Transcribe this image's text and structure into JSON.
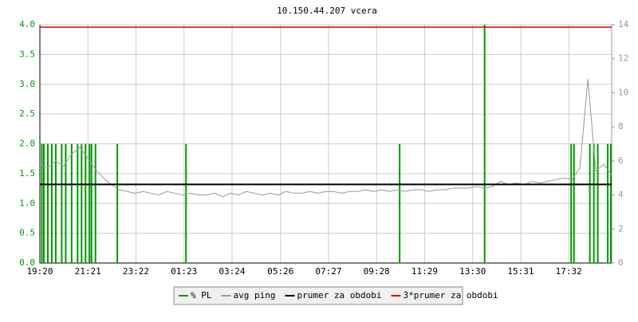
{
  "chart_data": {
    "type": "line",
    "title": "10.150.44.207 vcera",
    "xlim": [
      0,
      1440
    ],
    "xticks": [
      {
        "value": 0,
        "label": "19:20"
      },
      {
        "value": 121,
        "label": "21:21"
      },
      {
        "value": 242,
        "label": "23:22"
      },
      {
        "value": 363,
        "label": "01:23"
      },
      {
        "value": 484,
        "label": "03:24"
      },
      {
        "value": 606,
        "label": "05:26"
      },
      {
        "value": 727,
        "label": "07:27"
      },
      {
        "value": 848,
        "label": "09:28"
      },
      {
        "value": 969,
        "label": "11:29"
      },
      {
        "value": 1090,
        "label": "13:30"
      },
      {
        "value": 1211,
        "label": "15:31"
      },
      {
        "value": 1332,
        "label": "17:32"
      }
    ],
    "ylim": [
      0,
      4
    ],
    "yticks": [
      {
        "value": 0,
        "label": "0.0"
      },
      0.5,
      {
        "value": 1,
        "label": "1.0"
      },
      1.5,
      {
        "value": 2,
        "label": "2.0"
      },
      2.5,
      {
        "value": 3,
        "label": "3.0"
      },
      3.5,
      {
        "value": 4,
        "label": "4.0"
      }
    ],
    "y2lim": [
      0,
      14
    ],
    "y2ticks": [
      0,
      2,
      4,
      6,
      8,
      10,
      12,
      14
    ],
    "grid": true,
    "x": [
      0,
      20,
      40,
      60,
      80,
      100,
      120,
      140,
      160,
      180,
      200,
      220,
      240,
      260,
      280,
      300,
      320,
      340,
      360,
      380,
      400,
      420,
      440,
      460,
      480,
      500,
      520,
      540,
      560,
      580,
      600,
      620,
      640,
      660,
      680,
      700,
      720,
      740,
      760,
      780,
      800,
      820,
      840,
      860,
      880,
      900,
      920,
      940,
      960,
      980,
      1000,
      1020,
      1040,
      1060,
      1080,
      1100,
      1120,
      1140,
      1160,
      1180,
      1200,
      1220,
      1240,
      1260,
      1280,
      1300,
      1320,
      1340,
      1360,
      1380,
      1400,
      1420,
      1440
    ],
    "series": [
      {
        "name": "% PL",
        "color": "#009900",
        "kind": "spikes",
        "x": [
          5,
          10,
          20,
          30,
          40,
          55,
          65,
          80,
          95,
          105,
          115,
          125,
          130,
          140,
          195,
          368,
          906,
          1120,
          1338,
          1345,
          1385,
          1395,
          1405,
          1430,
          1438
        ],
        "values": [
          2,
          2,
          2,
          2,
          2,
          2,
          2,
          2,
          2,
          2,
          2,
          2,
          2,
          2,
          2,
          2,
          2,
          4,
          2,
          2,
          2,
          2,
          2,
          2,
          2
        ]
      },
      {
        "name": "avg ping",
        "color": "#999999",
        "kind": "line",
        "axis": "y2",
        "values": [
          5.8,
          5.6,
          6.0,
          5.7,
          6.4,
          6.8,
          6.2,
          5.5,
          5.0,
          4.6,
          4.3,
          4.2,
          4.1,
          4.2,
          4.1,
          4.0,
          4.2,
          4.1,
          4.0,
          4.1,
          4.0,
          4.0,
          4.1,
          3.9,
          4.1,
          4.0,
          4.2,
          4.1,
          4.0,
          4.1,
          4.0,
          4.2,
          4.1,
          4.1,
          4.2,
          4.1,
          4.2,
          4.2,
          4.1,
          4.2,
          4.2,
          4.3,
          4.2,
          4.3,
          4.2,
          4.3,
          4.2,
          4.3,
          4.3,
          4.2,
          4.3,
          4.3,
          4.4,
          4.4,
          4.4,
          4.5,
          4.4,
          4.5,
          4.8,
          4.6,
          4.7,
          4.6,
          4.8,
          4.7,
          4.8,
          4.9,
          5.0,
          4.9,
          5.6,
          10.8,
          5.4,
          5.8,
          5.2
        ]
      },
      {
        "name": "prumer za obdobi",
        "color": "#000000",
        "kind": "hline",
        "axis": "y2",
        "value": 4.62
      },
      {
        "name": "3*prumer za obdobi",
        "color": "#dd0000",
        "kind": "hline",
        "axis": "y2",
        "value": 13.86
      }
    ]
  }
}
